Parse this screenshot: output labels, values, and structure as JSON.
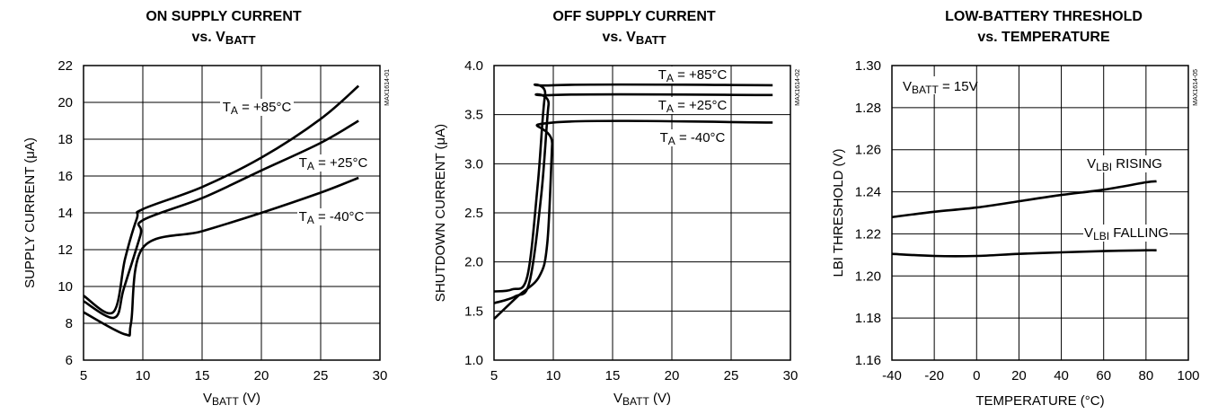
{
  "chart_data": [
    {
      "type": "line",
      "title_line1": "ON SUPPLY CURRENT",
      "title_line2_prefix": "vs. V",
      "title_line2_sub": "BATT",
      "xlabel_main": "V",
      "xlabel_sub": "BATT",
      "xlabel_suffix": " (V)",
      "ylabel": "SUPPLY CURRENT (μA)",
      "code": "MAX1614-01",
      "xlim": [
        5,
        30
      ],
      "ylim": [
        6,
        22
      ],
      "xticks": [
        5,
        10,
        15,
        20,
        25,
        30
      ],
      "yticks": [
        6,
        8,
        10,
        12,
        14,
        16,
        18,
        20,
        22
      ],
      "grid": true,
      "series": [
        {
          "label_main": "T",
          "label_sub": "A",
          "label_suffix": " = +85°C",
          "x": [
            5,
            7.5,
            8.5,
            9.5,
            10,
            15,
            20,
            25,
            28.2
          ],
          "y": [
            9.5,
            8.6,
            11.5,
            13.7,
            14.2,
            15.4,
            17.0,
            19.1,
            20.9
          ]
        },
        {
          "label_main": "T",
          "label_sub": "A",
          "label_suffix": " = +25°C",
          "x": [
            5,
            7.6,
            8.4,
            9.8,
            10,
            15,
            20,
            25,
            28.2
          ],
          "y": [
            9.2,
            8.3,
            9.9,
            12.8,
            13.6,
            14.8,
            16.3,
            17.8,
            19.0
          ]
        },
        {
          "label_main": "T",
          "label_sub": "A",
          "label_suffix": " = -40°C",
          "x": [
            5,
            8.5,
            9.0,
            10,
            15,
            20,
            25,
            28.2
          ],
          "y": [
            8.6,
            7.4,
            8.0,
            12.1,
            13.0,
            14.0,
            15.1,
            15.9
          ]
        }
      ]
    },
    {
      "type": "line",
      "title_line1": "OFF SUPPLY CURRENT",
      "title_line2_prefix": "vs. V",
      "title_line2_sub": "BATT",
      "xlabel_main": "V",
      "xlabel_sub": "BATT",
      "xlabel_suffix": " (V)",
      "ylabel": "SHUTDOWN CURRENT (μA)",
      "code": "MAX1614-02",
      "xlim": [
        5,
        30
      ],
      "ylim": [
        1.0,
        4.0
      ],
      "xticks": [
        5,
        10,
        15,
        20,
        25,
        30
      ],
      "yticks": [
        1.0,
        1.5,
        2.0,
        2.5,
        3.0,
        3.5,
        4.0
      ],
      "grid": true,
      "series": [
        {
          "label_main": "T",
          "label_sub": "A",
          "label_suffix": " = +85°C",
          "x": [
            5,
            6.5,
            7.8,
            8.7,
            9.3,
            10,
            28.5
          ],
          "y": [
            1.7,
            1.72,
            1.85,
            2.8,
            3.7,
            3.8,
            3.8
          ]
        },
        {
          "label_main": "T",
          "label_sub": "A",
          "label_suffix": " = +25°C",
          "x": [
            5,
            6.8,
            8.0,
            9.0,
            9.6,
            10,
            28.5
          ],
          "y": [
            1.58,
            1.65,
            1.8,
            2.7,
            3.6,
            3.7,
            3.7
          ]
        },
        {
          "label_main": "T",
          "label_sub": "A",
          "label_suffix": " = -40°C",
          "x": [
            5,
            7.0,
            8.8,
            9.5,
            9.9,
            10,
            28.5
          ],
          "y": [
            1.42,
            1.65,
            1.85,
            2.2,
            3.2,
            3.42,
            3.42
          ]
        }
      ]
    },
    {
      "type": "line",
      "title_line1": "LOW-BATTERY THRESHOLD",
      "title_line2": "vs. TEMPERATURE",
      "xlabel": "TEMPERATURE (°C)",
      "ylabel": "LBI THRESHOLD (V)",
      "code": "MAX1614-05",
      "xlim": [
        -40,
        100
      ],
      "ylim": [
        1.16,
        1.3
      ],
      "xticks": [
        -40,
        -20,
        0,
        20,
        40,
        60,
        80,
        100
      ],
      "yticks": [
        1.16,
        1.18,
        1.2,
        1.22,
        1.24,
        1.26,
        1.28,
        1.3
      ],
      "grid": true,
      "note_main": "V",
      "note_sub": "BATT",
      "note_suffix": " = 15V",
      "series": [
        {
          "label_main": "V",
          "label_sub": "LBI",
          "label_suffix": " RISING",
          "x": [
            -40,
            -20,
            0,
            20,
            40,
            60,
            80,
            85
          ],
          "y": [
            1.228,
            1.2305,
            1.2325,
            1.2355,
            1.2385,
            1.241,
            1.2445,
            1.245
          ]
        },
        {
          "label_main": "V",
          "label_sub": "LBI",
          "label_suffix": " FALLING",
          "x": [
            -40,
            -20,
            0,
            20,
            40,
            60,
            80,
            85
          ],
          "y": [
            1.2105,
            1.2095,
            1.2095,
            1.2105,
            1.2112,
            1.2118,
            1.2122,
            1.2122
          ]
        }
      ]
    }
  ]
}
